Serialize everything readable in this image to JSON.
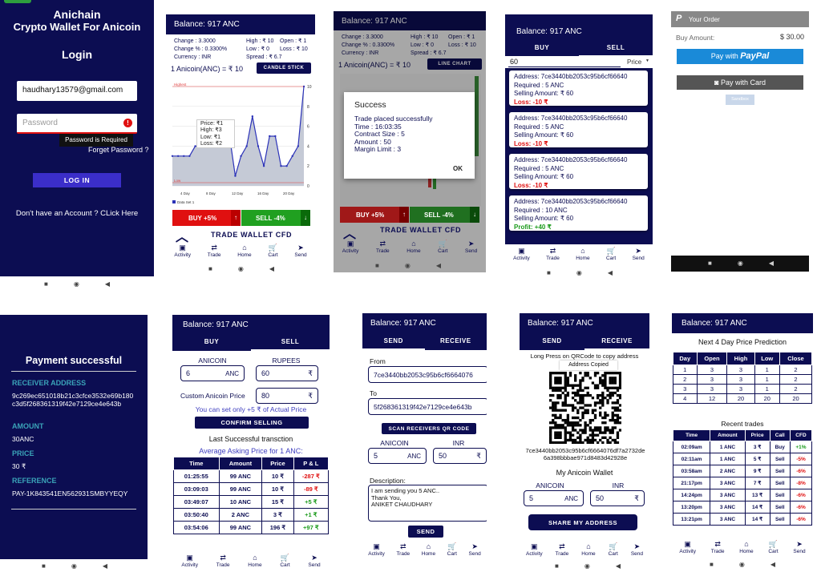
{
  "login": {
    "title1": "Anichain",
    "title2": "Crypto Wallet For Anicoin",
    "heading": "Login",
    "email": "haudhary13579@gmail.com",
    "password_placeholder": "Password",
    "error": "Password is Required",
    "forgot": "Forget Password ?",
    "login_btn": "LOG IN",
    "signup": "Don't have an Account ? CLick Here"
  },
  "candle": {
    "balance": "Balance: 917 ANC",
    "stats": [
      "Change : 3.3000",
      "High : ₹ 10",
      "Open : ₹ 1",
      "Change % : 0.3300%",
      "Low : ₹ 0",
      "Loss : ₹ 10",
      "Currency : INR",
      "Spread : ₹ 6.7"
    ],
    "rate": "1 Anicoin(ANC) = ₹ 10",
    "chart_btn": "CANDLE STICK",
    "tooltip": [
      "Price:  ₹1",
      "High:   ₹3",
      "Low:    ₹1",
      "Loss:   ₹2"
    ],
    "x_ticks": [
      "4 Day",
      "8 Day",
      "12 Day",
      "16 Day",
      "20 Day"
    ],
    "y_ticks": [
      "10",
      "8",
      "6",
      "4",
      "2",
      "0"
    ],
    "legend": "Data Set 1",
    "low_label": "Low",
    "highest_label": "Highest",
    "buy": "BUY +5%",
    "sell": "SELL -4%",
    "footer": "TRADE WALLET CFD"
  },
  "chart_data": {
    "type": "line",
    "x": [
      1,
      2,
      3,
      4,
      5,
      6,
      7,
      8,
      9,
      10,
      11,
      12,
      13,
      14,
      15,
      16,
      17,
      18,
      19,
      20,
      21,
      22,
      23,
      24
    ],
    "values": [
      3,
      3,
      3,
      3,
      4,
      4,
      4,
      4,
      4,
      4,
      5,
      1,
      3,
      4,
      7,
      4,
      2,
      5,
      5,
      2,
      2,
      3,
      4,
      10
    ],
    "ylim": [
      0,
      10
    ],
    "x_tick_labels": [
      "4 Day",
      "8 Day",
      "12 Day",
      "16 Day",
      "20 Day"
    ],
    "legend": "Data Set 1",
    "grid": true
  },
  "success": {
    "balance": "Balance: 917 ANC",
    "stats": [
      "Change : 3.3000",
      "High : ₹ 10",
      "Open : ₹ 1",
      "Change % : 0.3300%",
      "Low : ₹ 0",
      "Loss : ₹ 10",
      "Currency : INR",
      "Spread : ₹ 6.7"
    ],
    "rate": "1 Anicoin(ANC) = ₹ 10",
    "chart_btn": "LINE CHART",
    "dialog_title": "Success",
    "lines": [
      "Trade placed successfully",
      "Time : 16:03:35",
      "Contract Size : 5",
      "Amount : 50",
      "Margin Limit : 3"
    ],
    "ok": "OK",
    "buy": "BUY +5%",
    "sell": "SELL -4%",
    "footer": "TRADE WALLET CFD"
  },
  "sellList": {
    "status": "",
    "balance": "Balance: 917 ANC",
    "tabs": [
      "BUY",
      "SELL"
    ],
    "search_value": "60",
    "sort": "Price",
    "items": [
      {
        "address": "Address: 7ce3440bb2053c95b6cf66640",
        "required": "Required : 5 ANC",
        "selling": "Selling Amount: ₹ 60",
        "pl": "Loss: -10 ₹"
      },
      {
        "address": "Address: 7ce3440bb2053c95b6cf66640",
        "required": "Required : 5 ANC",
        "selling": "Selling Amount: ₹ 60",
        "pl": "Loss: -10 ₹"
      },
      {
        "address": "Address: 7ce3440bb2053c95b6cf66640",
        "required": "Required : 5 ANC",
        "selling": "Selling Amount: ₹ 60",
        "pl": "Loss: -10 ₹"
      },
      {
        "address": "Address: 7ce3440bb2053c95b6cf66640",
        "required": "Required : 10 ANC",
        "selling": "Selling Amount: ₹ 60",
        "pl": "Profit: +40 ₹"
      }
    ]
  },
  "paypal": {
    "header": "Your Order",
    "amount_label": "Buy Amount:",
    "amount": "$ 30.00",
    "pay_with": "Pay with",
    "brand": "PayPal",
    "card": "Pay with Card",
    "sandbox": "Sandbox"
  },
  "payment": {
    "title": "Payment successful",
    "receiver_label": "RECEIVER ADDRESS",
    "receiver": "9c269ec651018b21c3cfce3532e69b180c3d5f268361319f42e7129ce4e643b",
    "amount_label": "AMOUNT",
    "amount": "30ANC",
    "price_label": "PRICE",
    "price": "30 ₹",
    "ref_label": "REFERENCE",
    "ref": "PAY-1K843541EN562931SMBYYEQY"
  },
  "sellForm": {
    "balance": "Balance: 917 ANC",
    "tabs": [
      "BUY",
      "SELL"
    ],
    "anicoin_label": "ANICOIN",
    "rupees_label": "RUPEES",
    "anicoin": "6",
    "anc": "ANC",
    "rupees": "60",
    "custom_label": "Custom Anicoin Price",
    "custom": "80",
    "hint": "You can set only +5 ₹ of Actual Price",
    "confirm": "CONFIRM SELLING",
    "last": "Last Successful transction",
    "avg": "Average Asking Price for 1 ANC:",
    "cols": [
      "Time",
      "Amount",
      "Price",
      "P & L"
    ],
    "rows": [
      [
        "01:25:55",
        "99 ANC",
        "10 ₹",
        "-287 ₹",
        "r"
      ],
      [
        "03:09:03",
        "99 ANC",
        "10 ₹",
        "-89 ₹",
        "r"
      ],
      [
        "03:49:07",
        "10 ANC",
        "15 ₹",
        "+5 ₹",
        "g"
      ],
      [
        "03:50:40",
        "2 ANC",
        "3 ₹",
        "+1 ₹",
        "g"
      ],
      [
        "03:54:06",
        "99 ANC",
        "196 ₹",
        "+97 ₹",
        "g"
      ]
    ]
  },
  "send": {
    "balance": "Balance: 917 ANC",
    "tabs": [
      "SEND",
      "RECEIVE"
    ],
    "from_label": "From",
    "from": "7ce3440bb2053c95b6cf6664076",
    "to_label": "To",
    "to": "5f268361319f42e7129ce4e643b",
    "scan": "SCAN RECEIVERS QR CODE",
    "anicoin_label": "ANICOIN",
    "inr_label": "INR",
    "anicoin": "5",
    "anc": "ANC",
    "inr": "50",
    "desc_label": "Description:",
    "desc": [
      "I am sending you 5 ANC..",
      "Thank You,",
      "ANIKET CHAUDHARY"
    ],
    "send_btn": "SEND"
  },
  "receive": {
    "balance": "Balance: 917 ANC",
    "tabs": [
      "SEND",
      "RECEIVE"
    ],
    "hint": "Long Press on QRCode to copy address",
    "copied": "Address Copied",
    "address": "7ce3440bb2053c95b6cf6664076df7a2732de6a398bbbae971d8483d42928e",
    "wallet": "My Anicoin Wallet",
    "anicoin_label": "ANICOIN",
    "inr_label": "INR",
    "anicoin": "5",
    "anc": "ANC",
    "inr": "50",
    "share": "SHARE MY ADDRESS"
  },
  "predict": {
    "balance": "Balance: 917 ANC",
    "title": "Next 4 Day Price Prediction",
    "cols": [
      "Day",
      "Open",
      "High",
      "Low",
      "Close"
    ],
    "rows": [
      [
        "1",
        "3",
        "3",
        "1",
        "2"
      ],
      [
        "2",
        "3",
        "3",
        "1",
        "2"
      ],
      [
        "3",
        "3",
        "3",
        "1",
        "2"
      ],
      [
        "4",
        "12",
        "20",
        "20",
        "20"
      ]
    ],
    "recent": "Recent trades",
    "rcols": [
      "Time",
      "Amount",
      "Price",
      "Call",
      "CFD"
    ],
    "rrows": [
      [
        "02:09am",
        "1 ANC",
        "3 ₹",
        "Buy",
        "+1%",
        "g"
      ],
      [
        "02:11am",
        "1 ANC",
        "5 ₹",
        "Sell",
        "-5%",
        "r"
      ],
      [
        "03:58am",
        "2 ANC",
        "9 ₹",
        "Sell",
        "-6%",
        "r"
      ],
      [
        "21:17pm",
        "3 ANC",
        "7 ₹",
        "Sell",
        "-8%",
        "r"
      ],
      [
        "14:24pm",
        "3 ANC",
        "13 ₹",
        "Sell",
        "-6%",
        "r"
      ],
      [
        "13:20pm",
        "3 ANC",
        "14 ₹",
        "Sell",
        "-6%",
        "r"
      ],
      [
        "13:21pm",
        "3 ANC",
        "14 ₹",
        "Sell",
        "-6%",
        "r"
      ]
    ]
  },
  "nav": [
    "Activity",
    "Trade",
    "Home",
    "Cart",
    "Send"
  ],
  "colors": {
    "navy": "#0c0d52",
    "buy": "#e01010",
    "sell": "#20a020",
    "paypal": "#1a8ad8"
  }
}
